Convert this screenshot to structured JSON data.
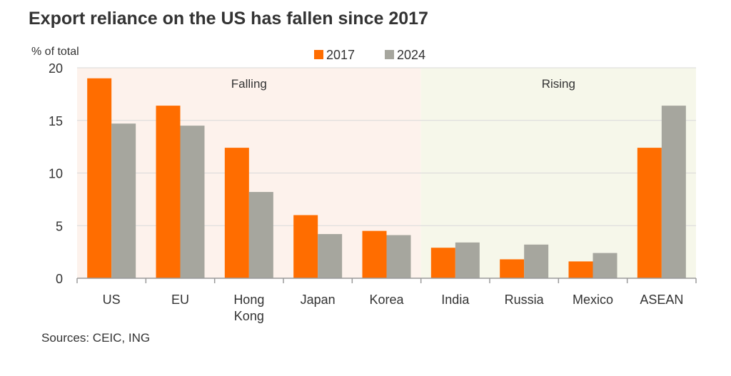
{
  "header": {
    "title": "Export reliance on the US has fallen since 2017",
    "source": "Sources: CEIC, ING"
  },
  "chart_data": {
    "type": "bar",
    "title": "Export reliance on the US has fallen since 2017",
    "ylabel": "% of total",
    "xlabel": "",
    "ylim": [
      0,
      20
    ],
    "yticks": [
      0,
      5,
      10,
      15,
      20
    ],
    "grid": true,
    "legend_position": "top-center",
    "categories": [
      [
        "US"
      ],
      [
        "EU"
      ],
      [
        "Hong",
        "Kong"
      ],
      [
        "Japan"
      ],
      [
        "Korea"
      ],
      [
        "India"
      ],
      [
        "Russia"
      ],
      [
        "Mexico"
      ],
      [
        "ASEAN"
      ]
    ],
    "series": [
      {
        "name": "2017",
        "color": "#ff6d00",
        "values": [
          19.0,
          16.4,
          12.4,
          6.0,
          4.5,
          2.9,
          1.8,
          1.6,
          12.4
        ]
      },
      {
        "name": "2024",
        "color": "#a6a69e",
        "values": [
          14.7,
          14.5,
          8.2,
          4.2,
          4.1,
          3.4,
          3.2,
          2.4,
          16.4
        ]
      }
    ],
    "regions": [
      {
        "label": "Falling",
        "from_category": 0,
        "to_category": 4,
        "color": "#fdf2ec"
      },
      {
        "label": "Rising",
        "from_category": 5,
        "to_category": 8,
        "color": "#f6f7ea"
      }
    ]
  }
}
